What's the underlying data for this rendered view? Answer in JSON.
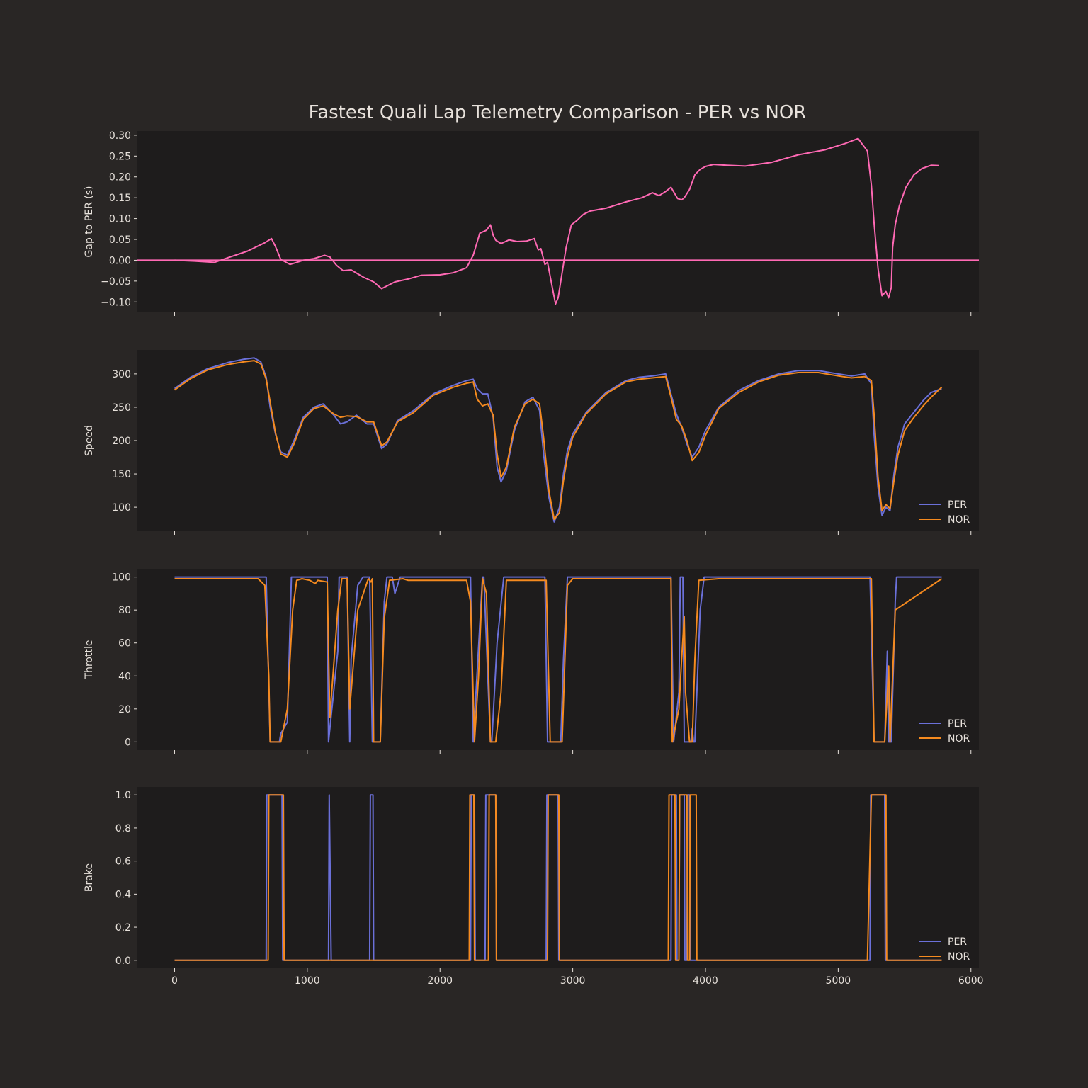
{
  "figure": {
    "title": "Fastest Quali Lap Telemetry Comparison - PER vs NOR",
    "background": "#292625",
    "axes_background": "#1e1c1c",
    "text_color": "#e8e2dc"
  },
  "chart_data": [
    {
      "type": "line",
      "id": "gap",
      "ylabel": "Gap to PER (s)",
      "xlim": [
        -280,
        6060
      ],
      "ylim": [
        -0.125,
        0.31
      ],
      "yticks": [
        -0.1,
        -0.05,
        0.0,
        0.05,
        0.1,
        0.15,
        0.2,
        0.25,
        0.3
      ],
      "ytick_labels": [
        "−0.10",
        "−0.05",
        "0.00",
        "0.05",
        "0.10",
        "0.15",
        "0.20",
        "0.25",
        "0.30"
      ],
      "xticks": [
        0,
        1000,
        2000,
        3000,
        4000,
        5000,
        6000
      ],
      "xtick_labels": [],
      "grid": false,
      "legend": null,
      "hline": {
        "y": 0,
        "color": "#ff69b4"
      },
      "series": [
        {
          "color": "#ff69b4",
          "x": [
            0,
            150,
            300,
            420,
            550,
            680,
            730,
            760,
            800,
            870,
            920,
            970,
            1050,
            1130,
            1170,
            1220,
            1270,
            1330,
            1420,
            1500,
            1560,
            1660,
            1760,
            1860,
            2000,
            2100,
            2200,
            2250,
            2300,
            2350,
            2380,
            2400,
            2420,
            2460,
            2520,
            2580,
            2650,
            2710,
            2740,
            2760,
            2790,
            2810,
            2840,
            2870,
            2890,
            2920,
            2950,
            2990,
            3030,
            3080,
            3130,
            3250,
            3400,
            3520,
            3600,
            3650,
            3700,
            3740,
            3790,
            3820,
            3840,
            3880,
            3920,
            3960,
            4000,
            4060,
            4160,
            4300,
            4500,
            4700,
            4900,
            5050,
            5150,
            5220,
            5250,
            5270,
            5300,
            5330,
            5360,
            5380,
            5400,
            5410,
            5430,
            5460,
            5510,
            5570,
            5630,
            5700,
            5760
          ],
          "y": [
            0.0,
            -0.002,
            -0.005,
            0.008,
            0.022,
            0.042,
            0.052,
            0.033,
            0.002,
            -0.01,
            -0.005,
            0.0,
            0.004,
            0.012,
            0.008,
            -0.012,
            -0.025,
            -0.023,
            -0.04,
            -0.052,
            -0.068,
            -0.052,
            -0.045,
            -0.036,
            -0.035,
            -0.03,
            -0.018,
            0.012,
            0.065,
            0.072,
            0.085,
            0.06,
            0.048,
            0.04,
            0.049,
            0.045,
            0.046,
            0.052,
            0.025,
            0.028,
            -0.01,
            -0.005,
            -0.055,
            -0.105,
            -0.09,
            -0.03,
            0.03,
            0.085,
            0.095,
            0.11,
            0.118,
            0.125,
            0.14,
            0.15,
            0.162,
            0.155,
            0.165,
            0.175,
            0.148,
            0.145,
            0.15,
            0.17,
            0.205,
            0.218,
            0.225,
            0.23,
            0.228,
            0.226,
            0.235,
            0.253,
            0.265,
            0.28,
            0.292,
            0.262,
            0.18,
            0.09,
            -0.02,
            -0.085,
            -0.075,
            -0.09,
            -0.065,
            0.03,
            0.085,
            0.13,
            0.175,
            0.205,
            0.22,
            0.228,
            0.227
          ]
        }
      ]
    },
    {
      "type": "line",
      "id": "speed",
      "ylabel": "Speed",
      "xlim": [
        -280,
        6060
      ],
      "ylim": [
        64,
        336
      ],
      "yticks": [
        100,
        150,
        200,
        250,
        300
      ],
      "ytick_labels": [
        "100",
        "150",
        "200",
        "250",
        "300"
      ],
      "xticks": [
        0,
        1000,
        2000,
        3000,
        4000,
        5000,
        6000
      ],
      "xtick_labels": [],
      "grid": false,
      "legend": "lower right",
      "series": [
        {
          "name": "PER",
          "color": "#6b70d9",
          "x": [
            0,
            120,
            250,
            400,
            520,
            600,
            650,
            690,
            720,
            760,
            800,
            850,
            900,
            970,
            1050,
            1120,
            1200,
            1250,
            1300,
            1370,
            1450,
            1500,
            1560,
            1600,
            1680,
            1800,
            1950,
            2100,
            2200,
            2250,
            2280,
            2320,
            2360,
            2400,
            2430,
            2460,
            2500,
            2560,
            2640,
            2700,
            2750,
            2780,
            2820,
            2860,
            2900,
            2930,
            2960,
            3000,
            3100,
            3250,
            3400,
            3500,
            3600,
            3700,
            3740,
            3780,
            3820,
            3860,
            3900,
            3950,
            4000,
            4100,
            4250,
            4400,
            4550,
            4700,
            4850,
            5000,
            5100,
            5200,
            5250,
            5270,
            5300,
            5330,
            5360,
            5390,
            5420,
            5450,
            5500,
            5560,
            5640,
            5700,
            5780
          ],
          "y": [
            278,
            295,
            308,
            317,
            322,
            324,
            318,
            295,
            250,
            210,
            183,
            178,
            200,
            235,
            250,
            255,
            238,
            225,
            228,
            238,
            225,
            225,
            188,
            195,
            230,
            245,
            270,
            283,
            290,
            292,
            278,
            270,
            270,
            235,
            160,
            138,
            155,
            215,
            258,
            265,
            245,
            180,
            115,
            78,
            100,
            150,
            185,
            210,
            242,
            272,
            290,
            295,
            297,
            300,
            270,
            240,
            220,
            195,
            175,
            190,
            215,
            250,
            275,
            290,
            300,
            305,
            305,
            300,
            297,
            300,
            285,
            210,
            130,
            88,
            100,
            95,
            150,
            190,
            225,
            240,
            260,
            272,
            278
          ]
        },
        {
          "name": "NOR",
          "color": "#f58a1f",
          "x": [
            0,
            120,
            250,
            400,
            520,
            600,
            650,
            690,
            720,
            760,
            800,
            850,
            900,
            970,
            1050,
            1120,
            1200,
            1250,
            1300,
            1370,
            1450,
            1500,
            1560,
            1600,
            1680,
            1800,
            1950,
            2100,
            2200,
            2250,
            2280,
            2320,
            2360,
            2400,
            2430,
            2460,
            2500,
            2560,
            2640,
            2700,
            2750,
            2780,
            2820,
            2860,
            2900,
            2930,
            2960,
            3000,
            3100,
            3250,
            3400,
            3500,
            3600,
            3700,
            3740,
            3780,
            3820,
            3860,
            3900,
            3950,
            4000,
            4100,
            4250,
            4400,
            4550,
            4700,
            4850,
            5000,
            5100,
            5200,
            5250,
            5270,
            5300,
            5330,
            5360,
            5390,
            5420,
            5450,
            5500,
            5560,
            5640,
            5700,
            5780
          ],
          "y": [
            276,
            293,
            306,
            314,
            318,
            320,
            315,
            292,
            258,
            212,
            180,
            175,
            195,
            232,
            248,
            252,
            240,
            235,
            237,
            236,
            228,
            228,
            192,
            198,
            228,
            242,
            268,
            280,
            286,
            288,
            262,
            252,
            255,
            238,
            180,
            145,
            160,
            220,
            255,
            262,
            255,
            205,
            125,
            82,
            92,
            140,
            175,
            205,
            240,
            270,
            288,
            292,
            294,
            296,
            265,
            232,
            222,
            200,
            170,
            182,
            208,
            248,
            272,
            288,
            298,
            302,
            302,
            297,
            294,
            296,
            290,
            240,
            145,
            95,
            104,
            98,
            140,
            178,
            215,
            232,
            252,
            265,
            280
          ]
        }
      ]
    },
    {
      "type": "line",
      "id": "throttle",
      "ylabel": "Throttle",
      "xlim": [
        -280,
        6060
      ],
      "ylim": [
        -5,
        105
      ],
      "yticks": [
        0,
        20,
        40,
        60,
        80,
        100
      ],
      "ytick_labels": [
        "0",
        "20",
        "40",
        "60",
        "80",
        "100"
      ],
      "xticks": [
        0,
        1000,
        2000,
        3000,
        4000,
        5000,
        6000
      ],
      "xtick_labels": [],
      "grid": false,
      "legend": "lower right",
      "series": [
        {
          "name": "PER",
          "color": "#6b70d9",
          "x": [
            0,
            690,
            720,
            790,
            800,
            850,
            880,
            1150,
            1160,
            1230,
            1240,
            1300,
            1320,
            1330,
            1380,
            1420,
            1470,
            1490,
            1550,
            1580,
            1600,
            1640,
            1660,
            1700,
            1720,
            1740,
            2230,
            2250,
            2320,
            2330,
            2380,
            2390,
            2430,
            2480,
            2500,
            2790,
            2810,
            2910,
            2930,
            2960,
            3740,
            3760,
            3800,
            3810,
            3830,
            3840,
            3890,
            3900,
            3910,
            3920,
            3960,
            3990,
            5240,
            5270,
            5350,
            5370,
            5380,
            5400,
            5430,
            5440,
            5780
          ],
          "y": [
            100,
            100,
            0,
            0,
            5,
            12,
            100,
            100,
            0,
            55,
            100,
            100,
            0,
            50,
            95,
            100,
            100,
            0,
            0,
            85,
            100,
            100,
            90,
            100,
            100,
            100,
            100,
            0,
            100,
            100,
            0,
            0,
            60,
            100,
            100,
            100,
            0,
            0,
            50,
            100,
            100,
            0,
            30,
            100,
            100,
            0,
            0,
            8,
            0,
            0,
            80,
            100,
            100,
            0,
            0,
            55,
            0,
            0,
            85,
            100,
            100
          ]
        },
        {
          "name": "NOR",
          "color": "#f58a1f",
          "x": [
            0,
            630,
            680,
            710,
            720,
            800,
            850,
            890,
            920,
            960,
            1020,
            1060,
            1080,
            1150,
            1170,
            1230,
            1260,
            1300,
            1320,
            1330,
            1380,
            1460,
            1480,
            1490,
            1500,
            1550,
            1580,
            1620,
            1720,
            1760,
            2200,
            2230,
            2260,
            2290,
            2320,
            2350,
            2380,
            2420,
            2460,
            2500,
            2800,
            2830,
            2920,
            2960,
            3000,
            3740,
            3750,
            3800,
            3820,
            3840,
            3850,
            3880,
            3900,
            3920,
            3950,
            4100,
            5250,
            5270,
            5350,
            5370,
            5380,
            5390,
            5430,
            5780
          ],
          "y": [
            99,
            99,
            95,
            40,
            0,
            0,
            20,
            80,
            98,
            99,
            98,
            96,
            98,
            97,
            15,
            80,
            99,
            99,
            20,
            30,
            80,
            99,
            97,
            99,
            0,
            0,
            75,
            98,
            99,
            98,
            98,
            85,
            0,
            40,
            99,
            90,
            0,
            0,
            30,
            98,
            98,
            0,
            0,
            95,
            99,
            99,
            0,
            20,
            50,
            76,
            30,
            0,
            0,
            50,
            98,
            99,
            99,
            0,
            0,
            30,
            46,
            0,
            80,
            99
          ]
        }
      ]
    },
    {
      "type": "line",
      "id": "brake",
      "ylabel": "Brake",
      "xlim": [
        -280,
        6060
      ],
      "ylim": [
        -0.048,
        1.048
      ],
      "yticks": [
        0.0,
        0.2,
        0.4,
        0.6,
        0.8,
        1.0
      ],
      "ytick_labels": [
        "0.0",
        "0.2",
        "0.4",
        "0.6",
        "0.8",
        "1.0"
      ],
      "xticks": [
        0,
        1000,
        2000,
        3000,
        4000,
        5000,
        6000
      ],
      "xtick_labels": [
        "0",
        "1000",
        "2000",
        "3000",
        "4000",
        "5000",
        "6000"
      ],
      "grid": false,
      "legend": "lower right",
      "series": [
        {
          "name": "PER",
          "color": "#6b70d9",
          "x": [
            0,
            690,
            695,
            810,
            815,
            1160,
            1165,
            1180,
            1185,
            1470,
            1475,
            1495,
            1500,
            2230,
            2235,
            2260,
            2265,
            2340,
            2345,
            2420,
            2425,
            2800,
            2805,
            2890,
            2895,
            3740,
            3745,
            3780,
            3785,
            3800,
            3805,
            3840,
            3845,
            3860,
            3865,
            3880,
            3885,
            3910,
            3915,
            5240,
            5245,
            5350,
            5355,
            5780
          ],
          "y": [
            0,
            0,
            1,
            1,
            0,
            0,
            1,
            0,
            0,
            0,
            1,
            1,
            0,
            0,
            1,
            1,
            0,
            0,
            1,
            1,
            0,
            0,
            1,
            1,
            0,
            0,
            1,
            1,
            0,
            0,
            1,
            1,
            0,
            0,
            1,
            1,
            0,
            0,
            0,
            0,
            1,
            1,
            0,
            0
          ]
        },
        {
          "name": "NOR",
          "color": "#f58a1f",
          "x": [
            0,
            705,
            710,
            820,
            825,
            2220,
            2225,
            2255,
            2260,
            2365,
            2370,
            2420,
            2425,
            2810,
            2815,
            2895,
            2900,
            3720,
            3725,
            3770,
            3775,
            3800,
            3805,
            3860,
            3865,
            3880,
            3885,
            3930,
            3935,
            5220,
            5250,
            5360,
            5365,
            5780
          ],
          "y": [
            0,
            0,
            1,
            1,
            0,
            0,
            1,
            1,
            0,
            0,
            1,
            1,
            0,
            0,
            1,
            1,
            0,
            0,
            1,
            1,
            0,
            0,
            1,
            1,
            0,
            0,
            1,
            1,
            0,
            0,
            1,
            1,
            0,
            0
          ]
        }
      ]
    }
  ]
}
